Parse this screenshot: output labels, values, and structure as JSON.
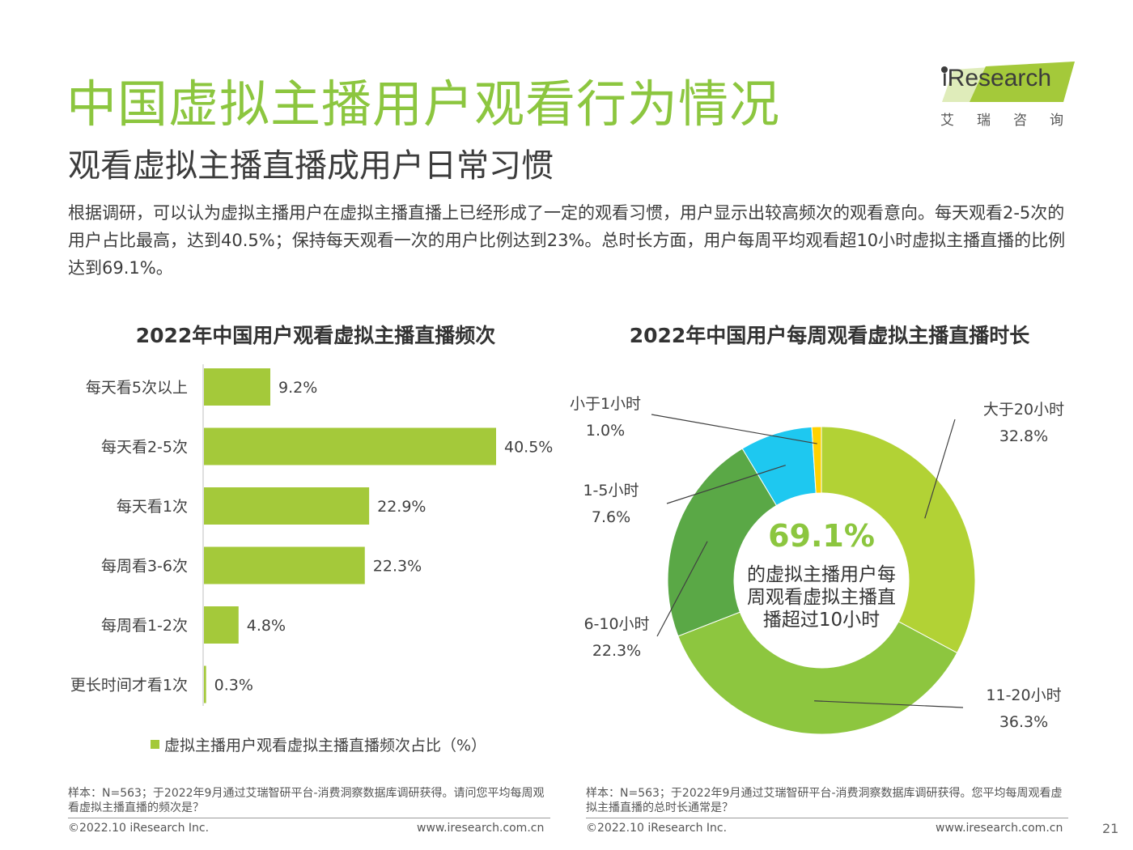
{
  "header": {
    "title": "中国虚拟主播用户观看行为情况",
    "subtitle": "观看虚拟主播直播成用户日常习惯",
    "intro": "根据调研，可以认为虚拟主播用户在虚拟主播直播上已经形成了一定的观看习惯，用户显示出较高频次的观看意向。每天观看2-5次的用户占比最高，达到40.5%；保持每天观看一次的用户比例达到23%。总时长方面，用户每周平均观看超10小时虚拟主播直播的比例达到69.1%。"
  },
  "logo": {
    "brand": "iResearch",
    "sub": "艾瑞咨询",
    "accent_color": "#a4c93a"
  },
  "chart_data": [
    {
      "type": "bar",
      "orientation": "horizontal",
      "title": "2022年中国用户观看虚拟主播直播频次",
      "categories": [
        "每天看5次以上",
        "每天看2-5次",
        "每天看1次",
        "每周看3-6次",
        "每周看1-2次",
        "更长时间才看1次"
      ],
      "values": [
        9.2,
        40.5,
        22.9,
        22.3,
        4.8,
        0.3
      ],
      "value_labels": [
        "9.2%",
        "40.5%",
        "22.9%",
        "22.3%",
        "4.8%",
        "0.3%"
      ],
      "xlim": [
        0,
        50
      ],
      "legend": "虚拟主播用户观看虚拟主播直播频次占比（%）",
      "color": "#a4c93a"
    },
    {
      "type": "pie",
      "variant": "donut",
      "title": "2022年中国用户每周观看虚拟主播直播时长",
      "slices": [
        {
          "label": "大于20小时",
          "value": 32.8,
          "value_label": "32.8%",
          "color": "#b2d235"
        },
        {
          "label": "11-20小时",
          "value": 36.3,
          "value_label": "36.3%",
          "color": "#8dc63f"
        },
        {
          "label": "6-10小时",
          "value": 22.3,
          "value_label": "22.3%",
          "color": "#5aa846"
        },
        {
          "label": "1-5小时",
          "value": 7.6,
          "value_label": "7.6%",
          "color": "#1ec8f0"
        },
        {
          "label": "小于1小时",
          "value": 1.0,
          "value_label": "1.0%",
          "color": "#ffd200"
        }
      ],
      "center": {
        "value": "69.1%",
        "lines": [
          "的虚拟主播用户每",
          "周观看虚拟主播直",
          "播超过10小时"
        ]
      }
    }
  ],
  "notes": {
    "left": "样本：N=563；于2022年9月通过艾瑞智研平台-消费洞察数据库调研获得。请问您平均每周观看虚拟主播直播的频次是？",
    "right": "样本：N=563；于2022年9月通过艾瑞智研平台-消费洞察数据库调研获得。您平均每周观看虚拟主播直播的总时长通常是？"
  },
  "footer": {
    "copyright": "©2022.10 iResearch Inc.",
    "url": "www.iresearch.com.cn",
    "page": "21"
  }
}
